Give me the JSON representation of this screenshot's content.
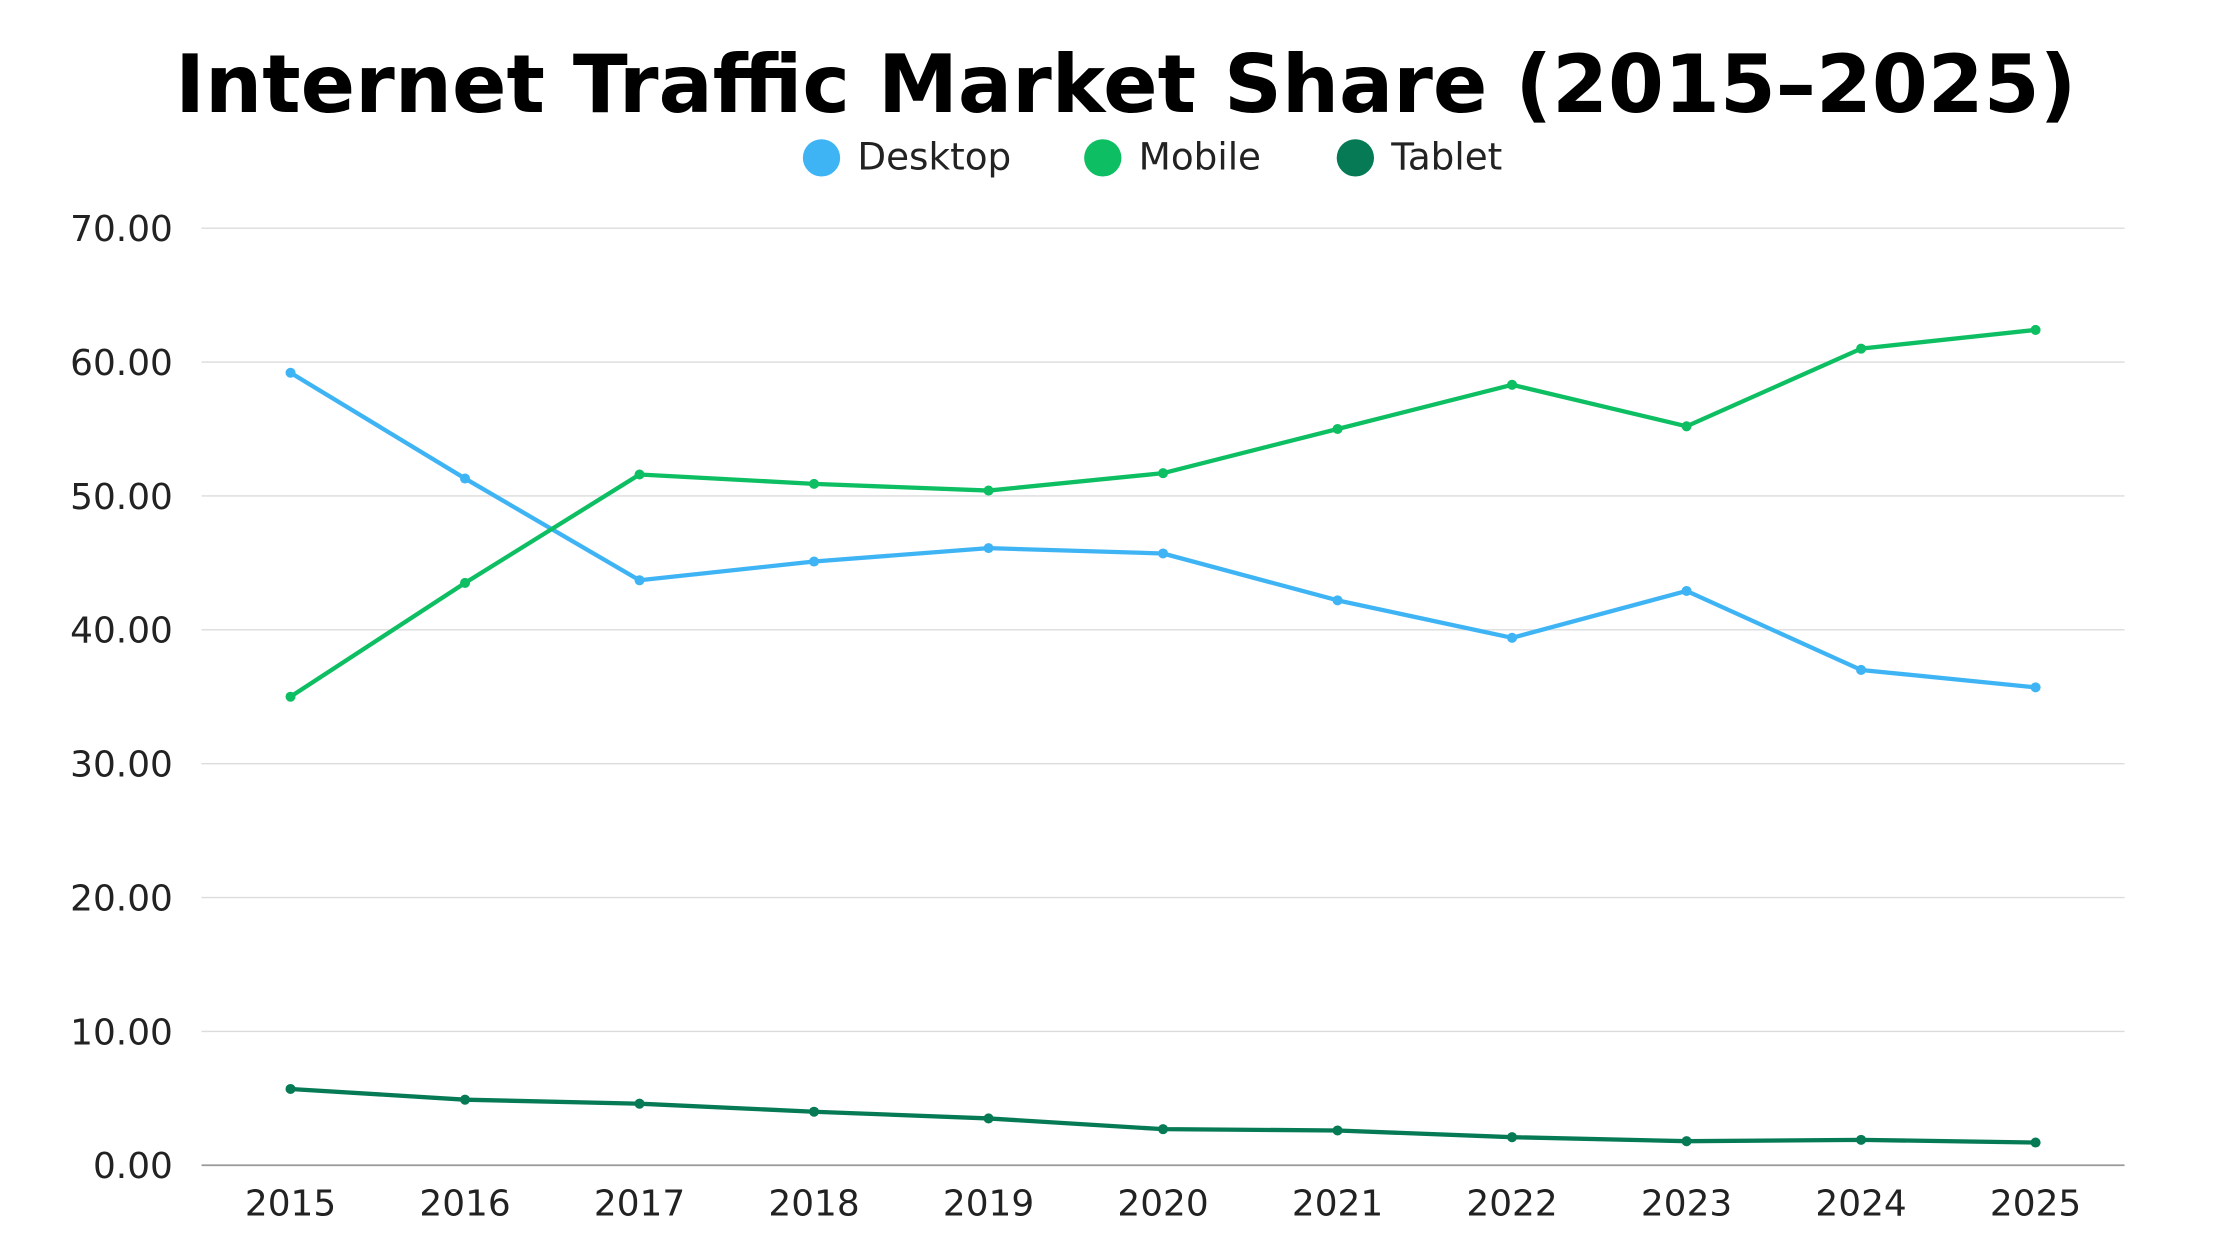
{
  "chart_data": {
    "type": "line",
    "title": "Internet Traffic Market Share (2015–2025)",
    "xlabel": "",
    "ylabel": "",
    "categories": [
      "2015",
      "2016",
      "2017",
      "2018",
      "2019",
      "2020",
      "2021",
      "2022",
      "2023",
      "2024",
      "2025"
    ],
    "ylim": [
      0,
      70
    ],
    "yticks": [
      "0.00",
      "10.00",
      "20.00",
      "30.00",
      "40.00",
      "50.00",
      "60.00",
      "70.00"
    ],
    "grid": true,
    "legend_placement": "top-center",
    "series": [
      {
        "name": "Desktop",
        "color": "#3fb4f5",
        "values": [
          59.2,
          51.3,
          43.7,
          45.1,
          46.1,
          45.7,
          42.2,
          39.4,
          42.9,
          37.0,
          35.7
        ]
      },
      {
        "name": "Mobile",
        "color": "#0dbf62",
        "values": [
          35.0,
          43.5,
          51.6,
          50.9,
          50.4,
          51.7,
          55.0,
          58.3,
          55.2,
          61.0,
          62.4
        ]
      },
      {
        "name": "Tablet",
        "color": "#067a55",
        "values": [
          5.7,
          4.9,
          4.6,
          4.0,
          3.5,
          2.7,
          2.6,
          2.1,
          1.8,
          1.9,
          1.7
        ]
      }
    ]
  }
}
